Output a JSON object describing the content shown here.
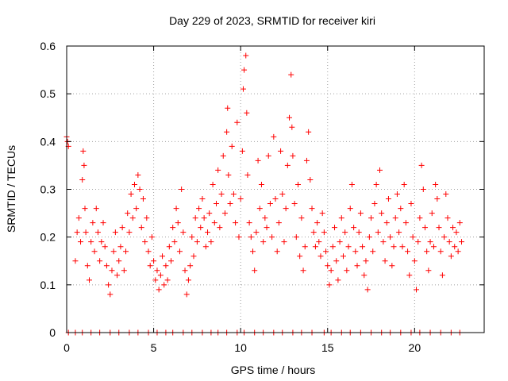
{
  "chart_data": {
    "type": "scatter",
    "title": "Day 229 of 2023, SRMTID for receiver kiri",
    "xlabel": "GPS time / hours",
    "ylabel": "SRMTID / TECUs",
    "xlim": [
      0,
      24
    ],
    "ylim": [
      0,
      0.6
    ],
    "xticks": [
      0,
      5,
      10,
      15,
      20
    ],
    "xtick_labels": [
      "0",
      "5",
      "10",
      "15",
      "20"
    ],
    "yticks": [
      0,
      0.1,
      0.2,
      0.3,
      0.4,
      0.5,
      0.6
    ],
    "ytick_labels": [
      "0",
      "0.1",
      "0.2",
      "0.3",
      "0.4",
      "0.5",
      "0.6"
    ],
    "grid": true,
    "legend": "none",
    "marker": "plus",
    "colors": {
      "series": "#ff0000",
      "grid": "#a0a0a0",
      "axis": "#000000"
    },
    "series": [
      {
        "name": "SRMTID",
        "points": [
          [
            0.0,
            0.41
          ],
          [
            0.05,
            0.4
          ],
          [
            0.1,
            0.39
          ],
          [
            0.5,
            0.15
          ],
          [
            0.6,
            0.21
          ],
          [
            0.7,
            0.24
          ],
          [
            0.8,
            0.19
          ],
          [
            0.9,
            0.32
          ],
          [
            0.95,
            0.38
          ],
          [
            1.0,
            0.35
          ],
          [
            1.05,
            0.26
          ],
          [
            1.1,
            0.21
          ],
          [
            1.2,
            0.14
          ],
          [
            1.3,
            0.11
          ],
          [
            1.4,
            0.19
          ],
          [
            1.5,
            0.23
          ],
          [
            1.6,
            0.17
          ],
          [
            1.7,
            0.26
          ],
          [
            1.8,
            0.21
          ],
          [
            1.9,
            0.15
          ],
          [
            2.0,
            0.19
          ],
          [
            2.1,
            0.23
          ],
          [
            2.2,
            0.18
          ],
          [
            2.3,
            0.14
          ],
          [
            2.4,
            0.1
          ],
          [
            2.5,
            0.08
          ],
          [
            2.6,
            0.13
          ],
          [
            2.7,
            0.17
          ],
          [
            2.8,
            0.21
          ],
          [
            2.9,
            0.12
          ],
          [
            3.0,
            0.15
          ],
          [
            3.1,
            0.18
          ],
          [
            3.2,
            0.22
          ],
          [
            3.3,
            0.13
          ],
          [
            3.4,
            0.17
          ],
          [
            3.5,
            0.25
          ],
          [
            3.6,
            0.21
          ],
          [
            3.7,
            0.29
          ],
          [
            3.8,
            0.24
          ],
          [
            3.9,
            0.31
          ],
          [
            4.0,
            0.26
          ],
          [
            4.1,
            0.33
          ],
          [
            4.2,
            0.3
          ],
          [
            4.3,
            0.22
          ],
          [
            4.4,
            0.28
          ],
          [
            4.5,
            0.19
          ],
          [
            4.6,
            0.24
          ],
          [
            4.7,
            0.17
          ],
          [
            4.8,
            0.14
          ],
          [
            4.9,
            0.2
          ],
          [
            5.0,
            0.15
          ],
          [
            5.1,
            0.11
          ],
          [
            5.2,
            0.13
          ],
          [
            5.3,
            0.09
          ],
          [
            5.4,
            0.12
          ],
          [
            5.5,
            0.16
          ],
          [
            5.6,
            0.1
          ],
          [
            5.7,
            0.14
          ],
          [
            5.8,
            0.11
          ],
          [
            5.9,
            0.18
          ],
          [
            6.0,
            0.15
          ],
          [
            6.1,
            0.22
          ],
          [
            6.2,
            0.19
          ],
          [
            6.3,
            0.26
          ],
          [
            6.4,
            0.23
          ],
          [
            6.5,
            0.17
          ],
          [
            6.6,
            0.3
          ],
          [
            6.7,
            0.21
          ],
          [
            6.8,
            0.13
          ],
          [
            6.9,
            0.08
          ],
          [
            7.0,
            0.11
          ],
          [
            7.1,
            0.14
          ],
          [
            7.2,
            0.2
          ],
          [
            7.3,
            0.16
          ],
          [
            7.4,
            0.24
          ],
          [
            7.5,
            0.19
          ],
          [
            7.6,
            0.26
          ],
          [
            7.7,
            0.22
          ],
          [
            7.8,
            0.28
          ],
          [
            7.9,
            0.24
          ],
          [
            8.0,
            0.18
          ],
          [
            8.1,
            0.21
          ],
          [
            8.2,
            0.25
          ],
          [
            8.3,
            0.19
          ],
          [
            8.4,
            0.31
          ],
          [
            8.5,
            0.23
          ],
          [
            8.6,
            0.27
          ],
          [
            8.7,
            0.34
          ],
          [
            8.8,
            0.22
          ],
          [
            8.9,
            0.29
          ],
          [
            9.0,
            0.37
          ],
          [
            9.1,
            0.25
          ],
          [
            9.2,
            0.42
          ],
          [
            9.25,
            0.47
          ],
          [
            9.3,
            0.33
          ],
          [
            9.4,
            0.27
          ],
          [
            9.5,
            0.39
          ],
          [
            9.6,
            0.29
          ],
          [
            9.7,
            0.23
          ],
          [
            9.8,
            0.44
          ],
          [
            9.9,
            0.2
          ],
          [
            10.0,
            0.28
          ],
          [
            10.1,
            0.38
          ],
          [
            10.15,
            0.51
          ],
          [
            10.2,
            0.55
          ],
          [
            10.3,
            0.58
          ],
          [
            10.35,
            0.46
          ],
          [
            10.4,
            0.33
          ],
          [
            10.5,
            0.23
          ],
          [
            10.6,
            0.2
          ],
          [
            10.7,
            0.17
          ],
          [
            10.8,
            0.13
          ],
          [
            10.9,
            0.21
          ],
          [
            11.0,
            0.36
          ],
          [
            11.1,
            0.26
          ],
          [
            11.2,
            0.31
          ],
          [
            11.3,
            0.19
          ],
          [
            11.4,
            0.24
          ],
          [
            11.5,
            0.22
          ],
          [
            11.6,
            0.37
          ],
          [
            11.7,
            0.27
          ],
          [
            11.8,
            0.2
          ],
          [
            11.9,
            0.41
          ],
          [
            12.0,
            0.28
          ],
          [
            12.1,
            0.17
          ],
          [
            12.2,
            0.23
          ],
          [
            12.3,
            0.38
          ],
          [
            12.4,
            0.29
          ],
          [
            12.5,
            0.19
          ],
          [
            12.6,
            0.26
          ],
          [
            12.7,
            0.35
          ],
          [
            12.8,
            0.45
          ],
          [
            12.9,
            0.54
          ],
          [
            12.95,
            0.43
          ],
          [
            13.0,
            0.37
          ],
          [
            13.1,
            0.27
          ],
          [
            13.2,
            0.2
          ],
          [
            13.3,
            0.31
          ],
          [
            13.4,
            0.16
          ],
          [
            13.5,
            0.24
          ],
          [
            13.6,
            0.13
          ],
          [
            13.7,
            0.18
          ],
          [
            13.8,
            0.36
          ],
          [
            13.9,
            0.42
          ],
          [
            14.0,
            0.32
          ],
          [
            14.1,
            0.26
          ],
          [
            14.2,
            0.21
          ],
          [
            14.3,
            0.18
          ],
          [
            14.4,
            0.23
          ],
          [
            14.5,
            0.19
          ],
          [
            14.6,
            0.16
          ],
          [
            14.7,
            0.25
          ],
          [
            14.8,
            0.21
          ],
          [
            14.9,
            0.17
          ],
          [
            15.0,
            0.14
          ],
          [
            15.1,
            0.1
          ],
          [
            15.2,
            0.13
          ],
          [
            15.3,
            0.18
          ],
          [
            15.4,
            0.22
          ],
          [
            15.5,
            0.15
          ],
          [
            15.6,
            0.11
          ],
          [
            15.7,
            0.19
          ],
          [
            15.8,
            0.24
          ],
          [
            15.9,
            0.16
          ],
          [
            16.0,
            0.21
          ],
          [
            16.1,
            0.13
          ],
          [
            16.2,
            0.18
          ],
          [
            16.3,
            0.26
          ],
          [
            16.4,
            0.31
          ],
          [
            16.5,
            0.22
          ],
          [
            16.6,
            0.17
          ],
          [
            16.7,
            0.14
          ],
          [
            16.8,
            0.21
          ],
          [
            16.9,
            0.25
          ],
          [
            17.0,
            0.18
          ],
          [
            17.1,
            0.12
          ],
          [
            17.2,
            0.15
          ],
          [
            17.3,
            0.09
          ],
          [
            17.4,
            0.2
          ],
          [
            17.5,
            0.24
          ],
          [
            17.6,
            0.17
          ],
          [
            17.7,
            0.27
          ],
          [
            17.8,
            0.31
          ],
          [
            17.9,
            0.21
          ],
          [
            18.0,
            0.34
          ],
          [
            18.1,
            0.25
          ],
          [
            18.2,
            0.19
          ],
          [
            18.3,
            0.15
          ],
          [
            18.4,
            0.23
          ],
          [
            18.5,
            0.28
          ],
          [
            18.6,
            0.2
          ],
          [
            18.7,
            0.14
          ],
          [
            18.8,
            0.18
          ],
          [
            18.9,
            0.24
          ],
          [
            19.0,
            0.29
          ],
          [
            19.1,
            0.21
          ],
          [
            19.2,
            0.26
          ],
          [
            19.3,
            0.18
          ],
          [
            19.4,
            0.31
          ],
          [
            19.5,
            0.23
          ],
          [
            19.6,
            0.17
          ],
          [
            19.7,
            0.12
          ],
          [
            19.8,
            0.27
          ],
          [
            19.9,
            0.2
          ],
          [
            20.0,
            0.15
          ],
          [
            20.1,
            0.09
          ],
          [
            20.2,
            0.19
          ],
          [
            20.3,
            0.24
          ],
          [
            20.4,
            0.35
          ],
          [
            20.5,
            0.3
          ],
          [
            20.6,
            0.22
          ],
          [
            20.7,
            0.17
          ],
          [
            20.8,
            0.13
          ],
          [
            20.9,
            0.19
          ],
          [
            21.0,
            0.25
          ],
          [
            21.1,
            0.18
          ],
          [
            21.2,
            0.31
          ],
          [
            21.3,
            0.28
          ],
          [
            21.4,
            0.22
          ],
          [
            21.5,
            0.17
          ],
          [
            21.6,
            0.12
          ],
          [
            21.7,
            0.2
          ],
          [
            21.8,
            0.29
          ],
          [
            21.9,
            0.24
          ],
          [
            22.0,
            0.19
          ],
          [
            22.1,
            0.16
          ],
          [
            22.2,
            0.22
          ],
          [
            22.3,
            0.18
          ],
          [
            22.4,
            0.21
          ],
          [
            22.5,
            0.17
          ],
          [
            22.6,
            0.23
          ],
          [
            22.7,
            0.19
          ]
        ]
      }
    ],
    "zero_band": {
      "y": 0,
      "note": "points drawn at the x-axis baseline",
      "x": [
        0.1,
        0.5,
        0.9,
        1.4,
        1.9,
        2.5,
        3.0,
        3.6,
        4.1,
        4.7,
        5.2,
        5.7,
        6.1,
        6.7,
        7.2,
        7.8,
        8.3,
        8.7,
        9.2,
        9.8,
        10.2,
        10.8,
        11.3,
        11.9,
        12.4,
        13.0,
        13.5,
        14.1,
        14.8,
        15.2,
        15.8,
        16.3,
        16.9,
        17.5,
        18.1,
        18.6,
        19.2,
        19.8,
        20.3,
        20.9,
        21.5,
        22.1,
        22.6
      ]
    }
  }
}
